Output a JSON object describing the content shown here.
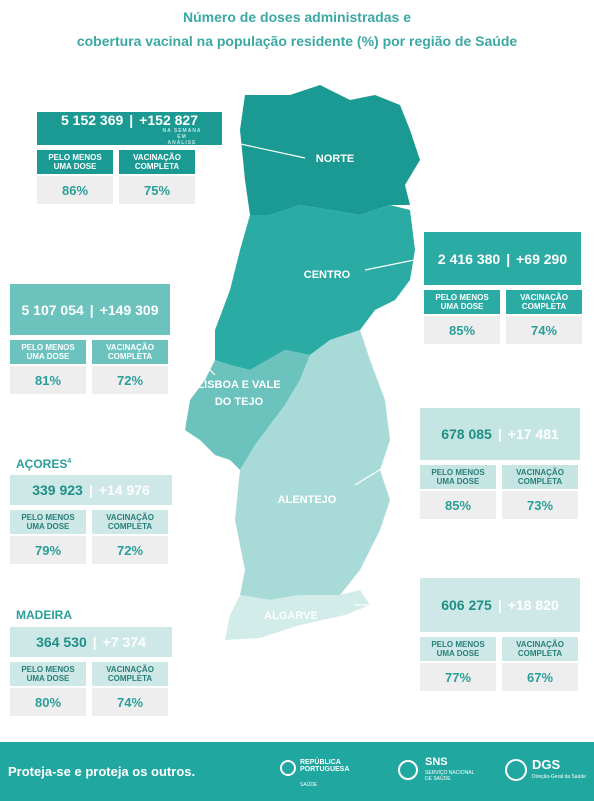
{
  "header": {
    "title": [
      "Número de doses administradas e",
      "cobertura vacinal na população residente (%) por região de Saúde"
    ]
  },
  "labels": {
    "first_dose": "PELO MENOS UMA DOSE",
    "complete": "VACINAÇÃO COMPLETA",
    "separator": "|"
  },
  "regions": [
    {
      "name": "NORTE",
      "total": "5 152 369",
      "increment": "+152 827",
      "note": "NA SEMANA EM ANÁLISE",
      "first_dose": "86%",
      "complete": "75%"
    },
    {
      "name": "CENTRO",
      "total": "2 416 380",
      "increment": "+69 290",
      "first_dose": "85%",
      "complete": "74%"
    },
    {
      "name": "LISBOA E VALE DO TEJO",
      "total": "5 107 054",
      "increment": "+149 309",
      "first_dose": "81%",
      "complete": "72%"
    },
    {
      "name": "ALENTEJO",
      "total": "678 085",
      "increment": "+17 481",
      "first_dose": "85%",
      "complete": "73%"
    },
    {
      "name": "ALGARVE",
      "total": "606 275",
      "increment": "+18 820",
      "first_dose": "77%",
      "complete": "67%"
    },
    {
      "name": "AÇORES",
      "footnote": "4",
      "total": "339 923",
      "increment": "+14 976",
      "first_dose": "79%",
      "complete": "72%"
    },
    {
      "name": "MADEIRA",
      "total": "364 530",
      "increment": "+7 374",
      "first_dose": "80%",
      "complete": "74%"
    }
  ],
  "footer": {
    "slogan": "Proteja-se e proteja os outros.",
    "logos": [
      "REPÚBLICA PORTUGUESA",
      "SAÚDE",
      "SNS",
      "SERVIÇO NACIONAL DE SAÚDE",
      "DGS",
      "Direção-Geral da Saúde"
    ]
  }
}
